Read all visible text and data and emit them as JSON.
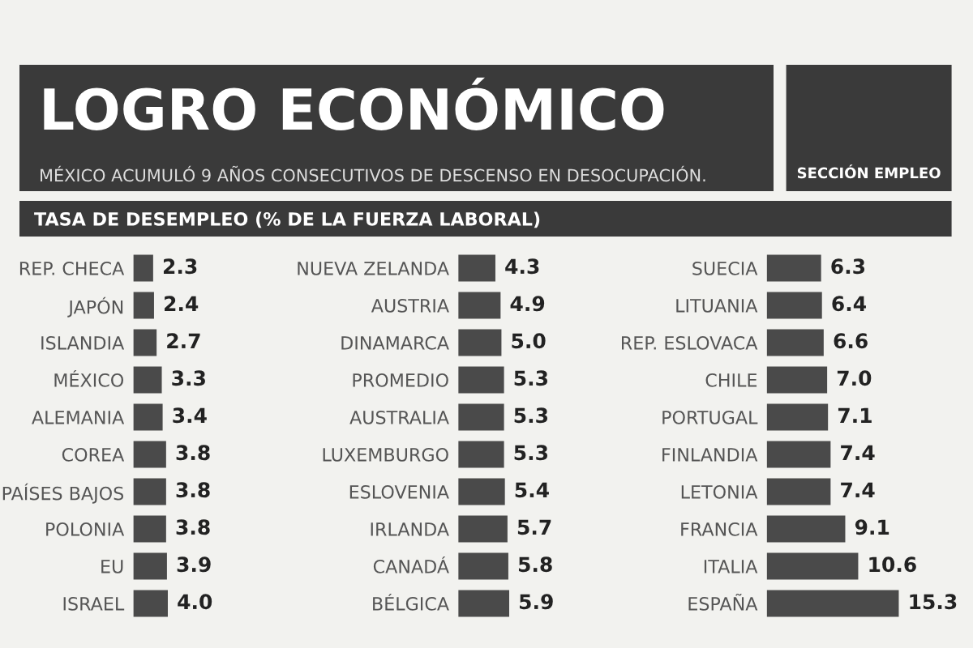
{
  "chart_data": [
    {
      "type": "bar",
      "orientation": "horizontal",
      "title": "LOGRO ECONÓMICO",
      "subtitle": "MÉXICO ACUMULÓ 9 AÑOS CONSECUTIVOS DE DESCENSO EN DESOCUPACIÓN.",
      "annotations": [
        "SECCIÓN EMPLEO",
        "TASA DE DESEMPLEO (% DE LA FUERZA LABORAL)"
      ],
      "categories": [
        "REP. CHECA",
        "JAPÓN",
        "ISLANDIA",
        "MÉXICO",
        "ALEMANIA",
        "COREA",
        "PAÍSES BAJOS",
        "POLONIA",
        "EU",
        "ISRAEL"
      ],
      "values": [
        2.3,
        2.4,
        2.7,
        3.3,
        3.4,
        3.8,
        3.8,
        3.8,
        3.9,
        4.0
      ],
      "value_labels": [
        "2.3",
        "2.4",
        "2.7",
        "3.3",
        "3.4",
        "3.8",
        "3.8",
        "3.8",
        "3.9",
        "4.0"
      ],
      "color": "#4a4a4a"
    },
    {
      "type": "bar",
      "orientation": "horizontal",
      "categories": [
        "NUEVA ZELANDA",
        "AUSTRIA",
        "DINAMARCA",
        "PROMEDIO",
        "AUSTRALIA",
        "LUXEMBURGO",
        "ESLOVENIA",
        "IRLANDA",
        "CANADÁ",
        "BÉLGICA"
      ],
      "values": [
        4.3,
        4.9,
        5.0,
        5.3,
        5.3,
        5.3,
        5.4,
        5.7,
        5.8,
        5.9
      ],
      "value_labels": [
        "4.3",
        "4.9",
        "5.0",
        "5.3",
        "5.3",
        "5.3",
        "5.4",
        "5.7",
        "5.8",
        "5.9"
      ],
      "color": "#4a4a4a"
    },
    {
      "type": "bar",
      "orientation": "horizontal",
      "categories": [
        "SUECIA",
        "LITUANIA",
        "REP. ESLOVACA",
        "CHILE",
        "PORTUGAL",
        "FINLANDIA",
        "LETONIA",
        "FRANCIA",
        "ITALIA",
        "ESPAÑA"
      ],
      "values": [
        6.3,
        6.4,
        6.6,
        7.0,
        7.1,
        7.4,
        7.4,
        9.1,
        10.6,
        15.3
      ],
      "value_labels": [
        "6.3",
        "6.4",
        "6.6",
        "7.0",
        "7.1",
        "7.4",
        "7.4",
        "9.1",
        "10.6",
        "15.3"
      ],
      "color": "#4a4a4a"
    }
  ]
}
